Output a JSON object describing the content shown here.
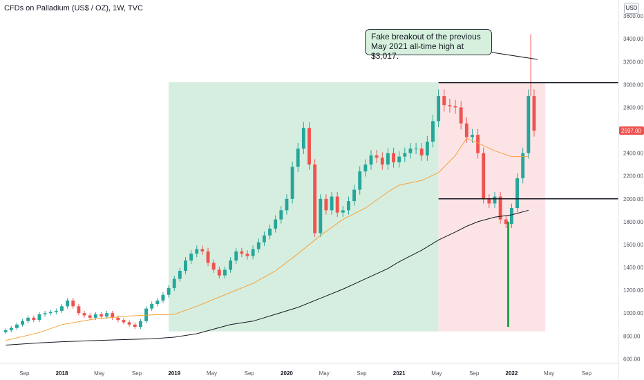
{
  "header": {
    "title": "CFDs on Palladium (US$ / OZ), 1W, TVC",
    "currency": "USD"
  },
  "annotation": {
    "text": "Fake breakout of the previous May 2021 all-time high at $3,017."
  },
  "colors": {
    "up": "#26a69a",
    "up_bright": "#24a148",
    "down": "#ef5350",
    "uptrend_zone": "#d6eee0",
    "downtrend_zone": "#fce4e6",
    "ma_fast": "#f5a33b",
    "ma_slow": "#131722",
    "price_badge": "#ef5350"
  },
  "chart_data": {
    "type": "candlestick",
    "title": "CFDs on Palladium (US$ / OZ), 1W, TVC",
    "ylim": [
      560,
      3740
    ],
    "y_ticks": [
      600,
      800,
      1000,
      1200,
      1400,
      1600,
      1800,
      2000,
      2200,
      2400,
      2600,
      2800,
      3000,
      3200,
      3400,
      3600
    ],
    "y_tick_labels": [
      "600.00",
      "800.00",
      "1000.00",
      "1200.00",
      "1400.00",
      "1600.00",
      "1800.00",
      "2000.00",
      "2200.00",
      "2400.00",
      "2600.00",
      "2800.00",
      "3000.00",
      "3200.00",
      "3400.00",
      "3600.00"
    ],
    "x_ticks": [
      {
        "label": "Sep",
        "bold": false,
        "t": 2017.667
      },
      {
        "label": "2018",
        "bold": true,
        "t": 2018.0
      },
      {
        "label": "May",
        "bold": false,
        "t": 2018.333
      },
      {
        "label": "Sep",
        "bold": false,
        "t": 2018.667
      },
      {
        "label": "2019",
        "bold": true,
        "t": 2019.0
      },
      {
        "label": "May",
        "bold": false,
        "t": 2019.333
      },
      {
        "label": "Sep",
        "bold": false,
        "t": 2019.667
      },
      {
        "label": "2020",
        "bold": true,
        "t": 2020.0
      },
      {
        "label": "May",
        "bold": false,
        "t": 2020.333
      },
      {
        "label": "Sep",
        "bold": false,
        "t": 2020.667
      },
      {
        "label": "2021",
        "bold": true,
        "t": 2021.0
      },
      {
        "label": "May",
        "bold": false,
        "t": 2021.333
      },
      {
        "label": "Sep",
        "bold": false,
        "t": 2021.667
      },
      {
        "label": "2022",
        "bold": true,
        "t": 2022.0
      },
      {
        "label": "May",
        "bold": false,
        "t": 2022.333
      },
      {
        "label": "Sep",
        "bold": false,
        "t": 2022.667
      }
    ],
    "last_price": "2597.00",
    "last_price_value": 2597,
    "series": [
      {
        "name": "",
        "kind": "moving_average_fast",
        "points": [
          [
            2017.5,
            760
          ],
          [
            2017.8,
            830
          ],
          [
            2018.0,
            900
          ],
          [
            2018.3,
            950
          ],
          [
            2018.6,
            975
          ],
          [
            2018.8,
            985
          ],
          [
            2019.0,
            990
          ],
          [
            2019.2,
            1060
          ],
          [
            2019.5,
            1180
          ],
          [
            2019.7,
            1260
          ],
          [
            2019.9,
            1370
          ],
          [
            2020.1,
            1520
          ],
          [
            2020.3,
            1680
          ],
          [
            2020.5,
            1820
          ],
          [
            2020.7,
            1920
          ],
          [
            2020.9,
            2060
          ],
          [
            2021.0,
            2120
          ],
          [
            2021.2,
            2160
          ],
          [
            2021.35,
            2230
          ],
          [
            2021.5,
            2380
          ],
          [
            2021.6,
            2530
          ],
          [
            2021.7,
            2490
          ],
          [
            2021.85,
            2420
          ],
          [
            2022.0,
            2370
          ],
          [
            2022.15,
            2370
          ]
        ]
      },
      {
        "name": "",
        "kind": "moving_average_slow",
        "points": [
          [
            2017.5,
            720
          ],
          [
            2017.8,
            740
          ],
          [
            2018.0,
            750
          ],
          [
            2018.3,
            760
          ],
          [
            2018.6,
            770
          ],
          [
            2018.8,
            775
          ],
          [
            2019.0,
            790
          ],
          [
            2019.2,
            820
          ],
          [
            2019.5,
            900
          ],
          [
            2019.7,
            930
          ],
          [
            2019.9,
            990
          ],
          [
            2020.1,
            1050
          ],
          [
            2020.3,
            1130
          ],
          [
            2020.5,
            1210
          ],
          [
            2020.7,
            1300
          ],
          [
            2020.9,
            1390
          ],
          [
            2021.0,
            1450
          ],
          [
            2021.2,
            1550
          ],
          [
            2021.35,
            1640
          ],
          [
            2021.5,
            1710
          ],
          [
            2021.6,
            1760
          ],
          [
            2021.7,
            1800
          ],
          [
            2021.85,
            1840
          ],
          [
            2022.0,
            1860
          ],
          [
            2022.15,
            1900
          ]
        ]
      },
      {
        "name": "",
        "kind": "price_weekly_close",
        "points": [
          [
            2017.5,
            850
          ],
          [
            2017.55,
            870
          ],
          [
            2017.6,
            900
          ],
          [
            2017.65,
            930
          ],
          [
            2017.7,
            960
          ],
          [
            2017.75,
            940
          ],
          [
            2017.8,
            990
          ],
          [
            2017.85,
            1000
          ],
          [
            2017.9,
            1010
          ],
          [
            2017.95,
            1020
          ],
          [
            2018.0,
            1060
          ],
          [
            2018.05,
            1110
          ],
          [
            2018.1,
            1060
          ],
          [
            2018.15,
            1000
          ],
          [
            2018.2,
            980
          ],
          [
            2018.25,
            960
          ],
          [
            2018.3,
            990
          ],
          [
            2018.35,
            970
          ],
          [
            2018.4,
            1000
          ],
          [
            2018.45,
            960
          ],
          [
            2018.5,
            940
          ],
          [
            2018.55,
            920
          ],
          [
            2018.6,
            900
          ],
          [
            2018.65,
            880
          ],
          [
            2018.7,
            930
          ],
          [
            2018.75,
            1040
          ],
          [
            2018.8,
            1080
          ],
          [
            2018.85,
            1110
          ],
          [
            2018.9,
            1160
          ],
          [
            2018.95,
            1220
          ],
          [
            2019.0,
            1300
          ],
          [
            2019.05,
            1370
          ],
          [
            2019.1,
            1460
          ],
          [
            2019.15,
            1520
          ],
          [
            2019.2,
            1560
          ],
          [
            2019.25,
            1540
          ],
          [
            2019.3,
            1440
          ],
          [
            2019.35,
            1380
          ],
          [
            2019.4,
            1330
          ],
          [
            2019.45,
            1380
          ],
          [
            2019.5,
            1460
          ],
          [
            2019.55,
            1540
          ],
          [
            2019.6,
            1520
          ],
          [
            2019.65,
            1500
          ],
          [
            2019.7,
            1560
          ],
          [
            2019.75,
            1620
          ],
          [
            2019.8,
            1680
          ],
          [
            2019.85,
            1740
          ],
          [
            2019.9,
            1820
          ],
          [
            2019.95,
            1900
          ],
          [
            2020.0,
            2000
          ],
          [
            2020.05,
            2280
          ],
          [
            2020.1,
            2440
          ],
          [
            2020.15,
            2620
          ],
          [
            2020.2,
            2300
          ],
          [
            2020.25,
            1700
          ],
          [
            2020.3,
            2000
          ],
          [
            2020.35,
            1900
          ],
          [
            2020.4,
            2020
          ],
          [
            2020.45,
            1880
          ],
          [
            2020.5,
            1900
          ],
          [
            2020.55,
            1980
          ],
          [
            2020.6,
            2080
          ],
          [
            2020.65,
            2240
          ],
          [
            2020.7,
            2300
          ],
          [
            2020.75,
            2380
          ],
          [
            2020.8,
            2360
          ],
          [
            2020.85,
            2300
          ],
          [
            2020.9,
            2400
          ],
          [
            2020.95,
            2320
          ],
          [
            2021.0,
            2370
          ],
          [
            2021.05,
            2400
          ],
          [
            2021.1,
            2440
          ],
          [
            2021.15,
            2440
          ],
          [
            2021.2,
            2380
          ],
          [
            2021.25,
            2500
          ],
          [
            2021.3,
            2680
          ],
          [
            2021.35,
            2900
          ],
          [
            2021.4,
            2820
          ],
          [
            2021.45,
            2810
          ],
          [
            2021.5,
            2800
          ],
          [
            2021.55,
            2660
          ],
          [
            2021.6,
            2540
          ],
          [
            2021.65,
            2560
          ],
          [
            2021.7,
            2400
          ],
          [
            2021.75,
            2000
          ],
          [
            2021.8,
            1960
          ],
          [
            2021.85,
            2020
          ],
          [
            2021.9,
            1820
          ],
          [
            2021.95,
            1780
          ],
          [
            2022.0,
            1920
          ],
          [
            2022.05,
            2180
          ],
          [
            2022.1,
            2400
          ],
          [
            2022.15,
            2900
          ],
          [
            2022.2,
            2597
          ]
        ]
      }
    ],
    "key_levels": [
      3017,
      2000
    ],
    "zones": [
      {
        "name": "",
        "kind": "uptrend",
        "from": 2018.95,
        "to": 2021.35,
        "low": 840,
        "high": 3020
      },
      {
        "name": "",
        "kind": "downtrend",
        "from": 2021.35,
        "to": 2022.3,
        "low": 840,
        "high": 3020
      }
    ],
    "spike_high": 3440,
    "spike_low": 880,
    "grid": false,
    "legend": "none"
  }
}
